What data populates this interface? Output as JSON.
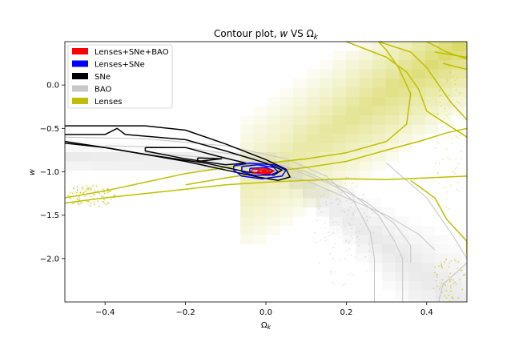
{
  "chart_data": {
    "type": "contour",
    "title_prefix": "Contour plot, ",
    "title_var": "w",
    "title_mid": " VS ",
    "title_omega": "Ω",
    "title_sub": "k",
    "xlabel_omega": "Ω",
    "xlabel_sub": "k",
    "ylabel": "w",
    "xlim": [
      -0.5,
      0.5
    ],
    "ylim": [
      -2.5,
      0.5
    ],
    "xticks": [
      -0.4,
      -0.2,
      0.0,
      0.2,
      0.4
    ],
    "xtick_labels": [
      "−0.4",
      "−0.2",
      "0.0",
      "0.2",
      "0.4"
    ],
    "yticks": [
      0.0,
      -0.5,
      -1.0,
      -1.5,
      -2.0
    ],
    "ytick_labels": [
      "0.0",
      "−0.5",
      "−1.0",
      "−1.5",
      "−2.0"
    ],
    "grid": false,
    "legend_position": "top-left",
    "legend": [
      {
        "label": "Lenses+SNe+BAO",
        "color": "#ff0000"
      },
      {
        "label": "Lenses+SNe",
        "color": "#0000ff"
      },
      {
        "label": "SNe",
        "color": "#000000"
      },
      {
        "label": "BAO",
        "color": "#c8c8c8"
      },
      {
        "label": "Lenses",
        "color": "#bfbf00"
      }
    ],
    "series": [
      {
        "color": "#000000",
        "contours": [
          [
            [
              -0.5,
              -0.47
            ],
            [
              -0.3,
              -0.47
            ],
            [
              -0.2,
              -0.52
            ],
            [
              -0.1,
              -0.68
            ],
            [
              0.0,
              -0.86
            ],
            [
              0.05,
              -0.97
            ],
            [
              0.06,
              -1.06
            ],
            [
              0.03,
              -1.1
            ],
            [
              -0.02,
              -1.06
            ],
            [
              -0.1,
              -0.98
            ],
            [
              -0.2,
              -0.88
            ],
            [
              -0.3,
              -0.8
            ],
            [
              -0.4,
              -0.72
            ],
            [
              -0.5,
              -0.67
            ]
          ],
          [
            [
              -0.5,
              -0.57
            ],
            [
              -0.4,
              -0.57
            ],
            [
              -0.37,
              -0.5
            ],
            [
              -0.35,
              -0.57
            ],
            [
              -0.2,
              -0.63
            ],
            [
              -0.1,
              -0.76
            ],
            [
              0.0,
              -0.9
            ],
            [
              0.04,
              -0.98
            ],
            [
              0.02,
              -1.04
            ],
            [
              -0.05,
              -1.0
            ],
            [
              -0.15,
              -0.9
            ],
            [
              -0.3,
              -0.8
            ],
            [
              -0.4,
              -0.72
            ],
            [
              -0.5,
              -0.65
            ]
          ],
          [
            [
              -0.3,
              -0.72
            ],
            [
              -0.2,
              -0.72
            ],
            [
              -0.12,
              -0.82
            ],
            [
              -0.05,
              -0.9
            ],
            [
              -0.1,
              -0.92
            ],
            [
              -0.2,
              -0.85
            ],
            [
              -0.3,
              -0.76
            ],
            [
              -0.3,
              -0.72
            ]
          ],
          [
            [
              -0.17,
              -0.84
            ],
            [
              -0.11,
              -0.85
            ],
            [
              -0.17,
              -0.88
            ],
            [
              -0.17,
              -0.84
            ]
          ]
        ]
      },
      {
        "color": "#0000ff",
        "contours": [
          [
            [
              -0.08,
              -0.93
            ],
            [
              -0.04,
              -0.9
            ],
            [
              0.02,
              -0.92
            ],
            [
              0.05,
              -0.98
            ],
            [
              0.04,
              -1.05
            ],
            [
              -0.01,
              -1.08
            ],
            [
              -0.06,
              -1.05
            ],
            [
              -0.08,
              -0.98
            ],
            [
              -0.08,
              -0.93
            ]
          ],
          [
            [
              -0.06,
              -0.94
            ],
            [
              -0.02,
              -0.92
            ],
            [
              0.02,
              -0.95
            ],
            [
              0.03,
              -1.0
            ],
            [
              0.01,
              -1.04
            ],
            [
              -0.03,
              -1.04
            ],
            [
              -0.06,
              -1.0
            ],
            [
              -0.06,
              -0.94
            ]
          ],
          [
            [
              -0.04,
              -0.96
            ],
            [
              0.0,
              -0.95
            ],
            [
              0.02,
              -0.99
            ],
            [
              0.0,
              -1.02
            ],
            [
              -0.04,
              -1.0
            ],
            [
              -0.04,
              -0.96
            ]
          ]
        ]
      },
      {
        "color": "#ff0000",
        "contours": [
          [
            [
              -0.035,
              -0.975
            ],
            [
              0.0,
              -0.965
            ],
            [
              0.02,
              -0.99
            ],
            [
              0.01,
              -1.02
            ],
            [
              -0.02,
              -1.02
            ],
            [
              -0.035,
              -1.0
            ],
            [
              -0.035,
              -0.975
            ]
          ],
          [
            [
              -0.02,
              -0.985
            ],
            [
              0.005,
              -0.98
            ],
            [
              0.01,
              -1.0
            ],
            [
              -0.005,
              -1.01
            ],
            [
              -0.02,
              -1.0
            ],
            [
              -0.02,
              -0.985
            ]
          ],
          [
            [
              -0.01,
              -0.99
            ],
            [
              0.0,
              -0.99
            ],
            [
              0.002,
              -1.0
            ],
            [
              -0.008,
              -1.0
            ],
            [
              -0.01,
              -0.99
            ]
          ]
        ]
      },
      {
        "color": "#bfbf00",
        "contours": [
          [
            [
              -0.5,
              -1.3
            ],
            [
              -0.4,
              -1.22
            ],
            [
              -0.3,
              -1.12
            ],
            [
              -0.2,
              -1.02
            ],
            [
              -0.1,
              -0.95
            ],
            [
              0.0,
              -0.9
            ],
            [
              0.1,
              -0.85
            ],
            [
              0.2,
              -0.78
            ],
            [
              0.3,
              -0.65
            ],
            [
              0.35,
              -0.45
            ],
            [
              0.36,
              -0.1
            ],
            [
              0.33,
              0.2
            ],
            [
              0.3,
              0.4
            ],
            [
              0.28,
              0.5
            ]
          ],
          [
            [
              0.2,
              0.5
            ],
            [
              0.3,
              0.32
            ],
            [
              0.35,
              0.15
            ],
            [
              0.38,
              -0.05
            ],
            [
              0.4,
              -0.3
            ],
            [
              0.5,
              -0.6
            ]
          ],
          [
            [
              0.28,
              0.5
            ],
            [
              0.36,
              0.38
            ],
            [
              0.4,
              0.2
            ],
            [
              0.43,
              0.0
            ],
            [
              0.46,
              -0.2
            ],
            [
              0.5,
              -0.4
            ]
          ],
          [
            [
              0.4,
              0.5
            ],
            [
              0.45,
              0.38
            ],
            [
              0.5,
              0.3
            ]
          ],
          [
            [
              0.44,
              0.25
            ],
            [
              0.5,
              0.18
            ]
          ],
          [
            [
              0.42,
              0.38
            ],
            [
              0.5,
              0.32
            ]
          ],
          [
            [
              -0.5,
              -1.36
            ],
            [
              -0.4,
              -1.3
            ],
            [
              -0.3,
              -1.25
            ],
            [
              -0.2,
              -1.2
            ],
            [
              -0.1,
              -1.15
            ],
            [
              0.0,
              -1.12
            ],
            [
              0.1,
              -1.1
            ],
            [
              0.2,
              -1.08
            ],
            [
              0.3,
              -1.09
            ],
            [
              0.4,
              -1.07
            ],
            [
              0.5,
              -1.05
            ]
          ],
          [
            [
              -0.2,
              -1.15
            ],
            [
              -0.1,
              -1.07
            ],
            [
              0.0,
              -1.0
            ],
            [
              0.1,
              -0.95
            ],
            [
              0.2,
              -0.88
            ],
            [
              0.3,
              -0.75
            ],
            [
              0.38,
              -0.65
            ],
            [
              0.45,
              -0.55
            ],
            [
              0.5,
              -0.5
            ]
          ],
          [
            [
              0.36,
              -1.1
            ],
            [
              0.42,
              -1.3
            ],
            [
              0.45,
              -1.55
            ],
            [
              0.5,
              -1.8
            ],
            [
              0.5,
              -1.95
            ]
          ]
        ]
      },
      {
        "color": "#c8c8c8",
        "contours": [
          [
            [
              -0.5,
              -0.6
            ],
            [
              -0.3,
              -0.62
            ],
            [
              -0.1,
              -0.7
            ],
            [
              0.05,
              -0.85
            ],
            [
              0.15,
              -1.05
            ],
            [
              0.22,
              -1.35
            ],
            [
              0.26,
              -1.7
            ],
            [
              0.27,
              -2.0
            ],
            [
              0.27,
              -2.5
            ]
          ],
          [
            [
              -0.4,
              -0.7
            ],
            [
              -0.2,
              -0.72
            ],
            [
              -0.05,
              -0.82
            ],
            [
              0.1,
              -1.0
            ],
            [
              0.2,
              -1.2
            ],
            [
              0.28,
              -1.5
            ],
            [
              0.32,
              -1.8
            ],
            [
              0.34,
              -2.0
            ],
            [
              0.34,
              -2.5
            ]
          ],
          [
            [
              -0.3,
              -0.78
            ],
            [
              -0.1,
              -0.85
            ],
            [
              0.05,
              -0.95
            ],
            [
              0.15,
              -1.12
            ],
            [
              0.25,
              -1.35
            ],
            [
              0.32,
              -1.6
            ],
            [
              0.36,
              -1.85
            ],
            [
              0.36,
              -2.05
            ]
          ],
          [
            [
              0.0,
              -1.0
            ],
            [
              0.1,
              -1.1
            ],
            [
              0.2,
              -1.3
            ],
            [
              0.3,
              -1.5
            ],
            [
              0.38,
              -1.72
            ],
            [
              0.42,
              -1.9
            ]
          ],
          [
            [
              0.3,
              -0.9
            ],
            [
              0.4,
              -1.3
            ],
            [
              0.46,
              -1.7
            ],
            [
              0.5,
              -2.0
            ]
          ],
          [
            [
              0.5,
              -2.05
            ],
            [
              0.44,
              -2.3
            ],
            [
              0.43,
              -2.5
            ]
          ]
        ]
      }
    ]
  }
}
